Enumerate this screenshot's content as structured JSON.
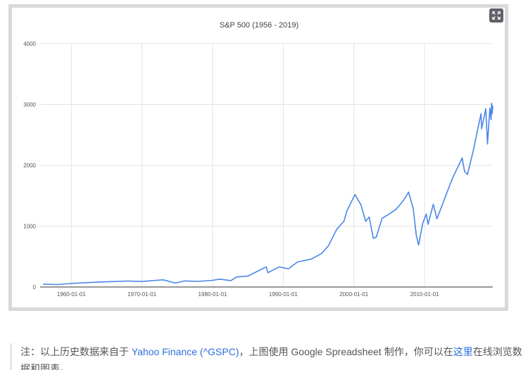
{
  "chart_data": {
    "type": "line",
    "title": "S&P 500 (1956 - 2019)",
    "xlabel": "",
    "ylabel": "",
    "ylim": [
      0,
      4000
    ],
    "xlim": [
      "1955-08-01",
      "2019-09-01"
    ],
    "y_ticks": [
      0,
      1000,
      2000,
      3000,
      4000
    ],
    "x_ticks": [
      "1960-01-01",
      "1970-01-01",
      "1980-01-01",
      "1990-01-01",
      "2000-01-01",
      "2010-01-01"
    ],
    "grid": true,
    "legend": "none",
    "series": [
      {
        "color": "#4a86e8",
        "points": [
          [
            "1956-01-01",
            45
          ],
          [
            "1958-01-01",
            40
          ],
          [
            "1960-01-01",
            58
          ],
          [
            "1962-01-01",
            70
          ],
          [
            "1964-01-01",
            82
          ],
          [
            "1966-01-01",
            90
          ],
          [
            "1968-01-01",
            98
          ],
          [
            "1970-01-01",
            90
          ],
          [
            "1972-01-01",
            110
          ],
          [
            "1973-01-01",
            118
          ],
          [
            "1974-10-01",
            65
          ],
          [
            "1976-01-01",
            100
          ],
          [
            "1978-01-01",
            92
          ],
          [
            "1980-01-01",
            110
          ],
          [
            "1981-01-01",
            130
          ],
          [
            "1982-08-01",
            105
          ],
          [
            "1983-06-01",
            165
          ],
          [
            "1985-01-01",
            180
          ],
          [
            "1987-08-01",
            330
          ],
          [
            "1987-11-01",
            235
          ],
          [
            "1989-06-01",
            330
          ],
          [
            "1990-10-01",
            300
          ],
          [
            "1992-01-01",
            410
          ],
          [
            "1994-01-01",
            460
          ],
          [
            "1995-06-01",
            550
          ],
          [
            "1996-06-01",
            680
          ],
          [
            "1997-08-01",
            950
          ],
          [
            "1998-08-01",
            1080
          ],
          [
            "1999-01-01",
            1250
          ],
          [
            "2000-03-01",
            1520
          ],
          [
            "2001-01-01",
            1350
          ],
          [
            "2001-09-01",
            1080
          ],
          [
            "2002-03-01",
            1150
          ],
          [
            "2002-10-01",
            800
          ],
          [
            "2003-03-01",
            820
          ],
          [
            "2004-01-01",
            1130
          ],
          [
            "2005-01-01",
            1200
          ],
          [
            "2006-01-01",
            1280
          ],
          [
            "2007-01-01",
            1420
          ],
          [
            "2007-10-01",
            1560
          ],
          [
            "2008-06-01",
            1280
          ],
          [
            "2008-11-01",
            850
          ],
          [
            "2009-03-01",
            690
          ],
          [
            "2009-10-01",
            1050
          ],
          [
            "2010-04-01",
            1200
          ],
          [
            "2010-07-01",
            1030
          ],
          [
            "2011-04-01",
            1360
          ],
          [
            "2011-10-01",
            1120
          ],
          [
            "2012-06-01",
            1320
          ],
          [
            "2013-01-01",
            1500
          ],
          [
            "2014-01-01",
            1800
          ],
          [
            "2015-05-01",
            2120
          ],
          [
            "2015-09-01",
            1900
          ],
          [
            "2016-02-01",
            1850
          ],
          [
            "2016-12-01",
            2250
          ],
          [
            "2018-01-01",
            2850
          ],
          [
            "2018-02-01",
            2600
          ],
          [
            "2018-09-01",
            2930
          ],
          [
            "2018-12-01",
            2350
          ],
          [
            "2019-04-01",
            2940
          ],
          [
            "2019-06-01",
            2750
          ],
          [
            "2019-07-01",
            3020
          ],
          [
            "2019-08-01",
            2850
          ],
          [
            "2019-09-01",
            2980
          ]
        ]
      }
    ]
  },
  "fullscreen_icon": "fullscreen-expand-icon",
  "note": {
    "prefix": "注：以上历史数据来自于 ",
    "source_link": "Yahoo Finance (^GSPC)",
    "middle": "，上图使用 Google Spreadsheet 制作，你可以在",
    "here_link": "这里",
    "suffix": "在线浏览数据和图表。"
  }
}
